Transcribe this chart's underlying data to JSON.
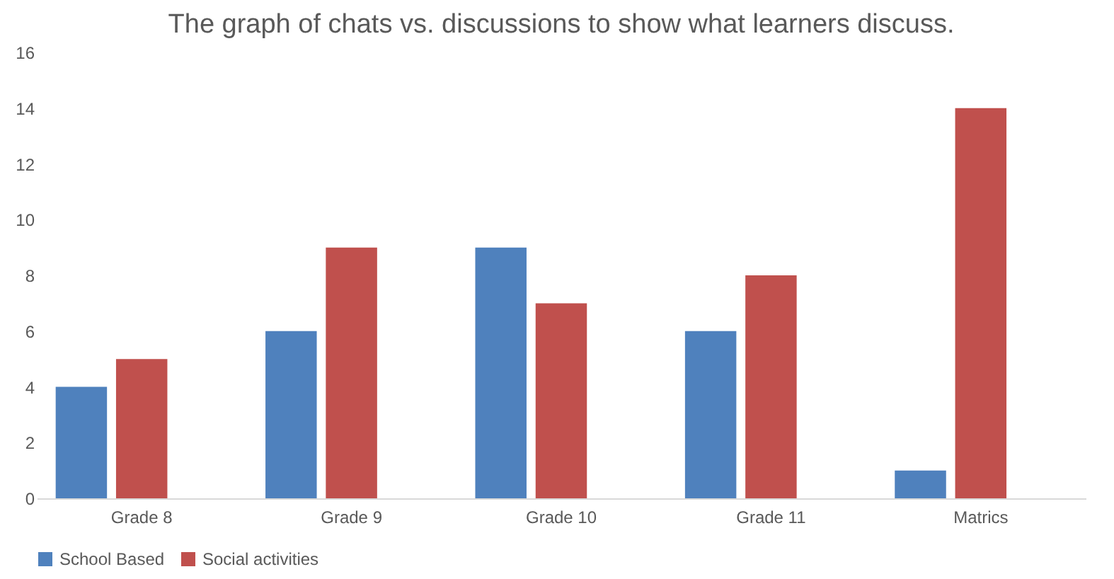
{
  "chart_data": {
    "type": "bar",
    "title": "The graph of chats vs. discussions to show what learners discuss.",
    "categories": [
      "Grade 8",
      "Grade 9",
      "Grade 10",
      "Grade 11",
      "Matrics"
    ],
    "series": [
      {
        "name": "School Based",
        "color": "#4f81bd",
        "values": [
          4,
          6,
          9,
          6,
          1
        ]
      },
      {
        "name": "Social activities",
        "color": "#c0504d",
        "values": [
          5,
          9,
          7,
          8,
          14
        ]
      }
    ],
    "ylim": [
      0,
      16
    ],
    "yticks": [
      0,
      2,
      4,
      6,
      8,
      10,
      12,
      14,
      16
    ],
    "grid": false,
    "legend": "bottom"
  }
}
